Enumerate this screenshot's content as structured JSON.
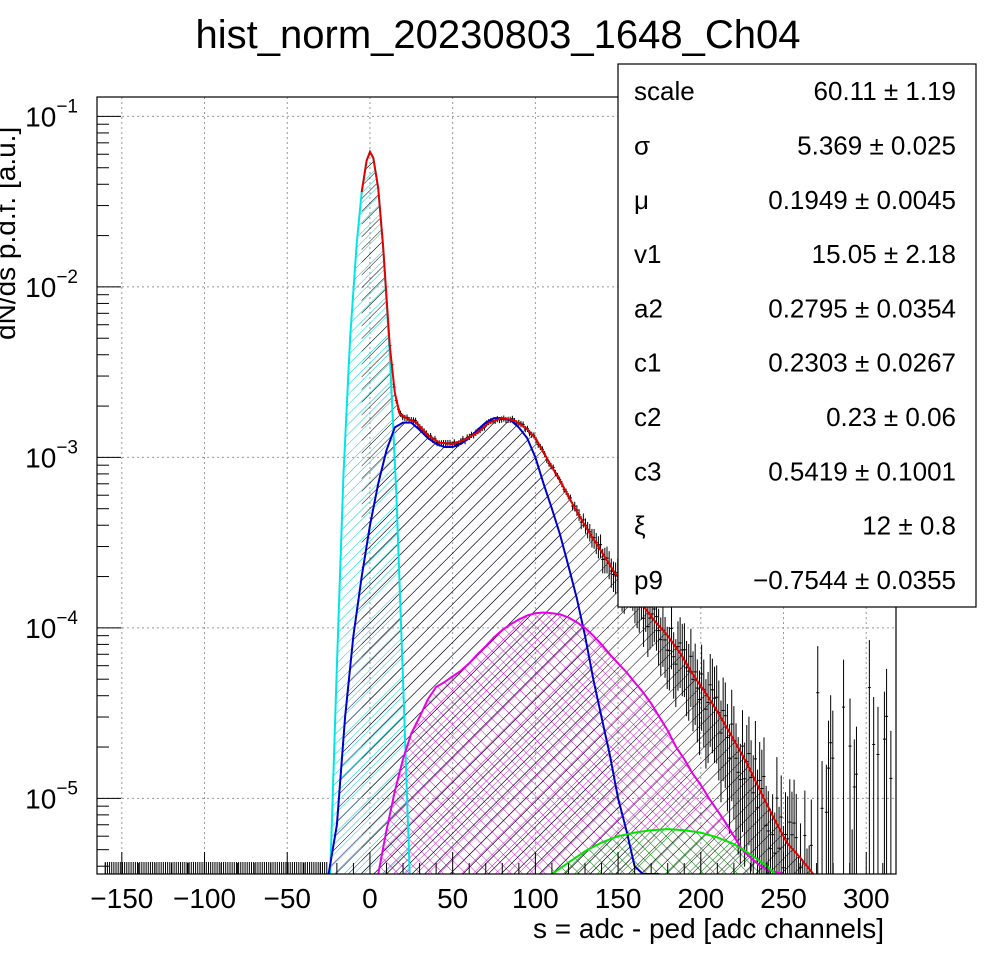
{
  "chart_data": {
    "type": "line",
    "title": "hist_norm_20230803_1648_Ch04",
    "xlabel": "s = adc - ped [adc channels]",
    "ylabel": "dN/ds p.d.f. [a.u.]",
    "xlim": [
      -165,
      318
    ],
    "ylim": [
      3.6e-06,
      0.13
    ],
    "yscale": "log",
    "grid": true,
    "x_ticks": [
      {
        "v": -150,
        "label": "−150"
      },
      {
        "v": -100,
        "label": "−100"
      },
      {
        "v": -50,
        "label": "−50"
      },
      {
        "v": 0,
        "label": "0"
      },
      {
        "v": 50,
        "label": "50"
      },
      {
        "v": 100,
        "label": "100"
      },
      {
        "v": 150,
        "label": "150"
      },
      {
        "v": 200,
        "label": "200"
      },
      {
        "v": 250,
        "label": "250"
      },
      {
        "v": 300,
        "label": "300"
      }
    ],
    "y_ticks": [
      {
        "v": 0.1,
        "base": "10",
        "exp": "−1"
      },
      {
        "v": 0.01,
        "base": "10",
        "exp": "−2"
      },
      {
        "v": 0.001,
        "base": "10",
        "exp": "−3"
      },
      {
        "v": 0.0001,
        "base": "10",
        "exp": "−4"
      },
      {
        "v": 1e-05,
        "base": "10",
        "exp": "−5"
      }
    ],
    "series": [
      {
        "color": "#00e5e5",
        "style": "hatch",
        "x": [
          -24,
          -20,
          -16,
          -12,
          -8,
          -5,
          -2,
          0,
          2,
          5,
          8,
          12,
          16,
          20,
          24
        ],
        "y": [
          3.6e-06,
          6e-05,
          0.0008,
          0.005,
          0.018,
          0.036,
          0.055,
          0.062,
          0.057,
          0.038,
          0.017,
          0.004,
          0.0006,
          5e-05,
          3.6e-06
        ]
      },
      {
        "color": "#0000cc",
        "style": "hatch",
        "x": [
          -25,
          -20,
          -15,
          -10,
          -5,
          0,
          5,
          10,
          15,
          20,
          25,
          30,
          35,
          40,
          45,
          50,
          55,
          60,
          65,
          70,
          75,
          80,
          85,
          90,
          95,
          100,
          105,
          110,
          115,
          120,
          125,
          130,
          135,
          140,
          145,
          150,
          155,
          160,
          165,
          170,
          175
        ],
        "y": [
          3.6e-06,
          7e-06,
          3e-05,
          9e-05,
          0.0002,
          0.0004,
          0.0007,
          0.0011,
          0.0015,
          0.0016,
          0.0016,
          0.00145,
          0.0013,
          0.0012,
          0.00115,
          0.00115,
          0.0012,
          0.0013,
          0.00145,
          0.0016,
          0.0017,
          0.0017,
          0.00165,
          0.0015,
          0.0013,
          0.001,
          0.0007,
          0.0005,
          0.00035,
          0.00023,
          0.00015,
          9e-05,
          5e-05,
          3e-05,
          1.8e-05,
          1e-05,
          6.5e-06,
          4e-06,
          3.6e-06,
          3.6e-06,
          3.6e-06
        ]
      },
      {
        "color": "#e500e5",
        "style": "crosshatch",
        "x": [
          5,
          10,
          15,
          20,
          25,
          30,
          35,
          40,
          45,
          50,
          55,
          60,
          65,
          70,
          75,
          80,
          85,
          90,
          95,
          100,
          105,
          110,
          115,
          120,
          125,
          130,
          135,
          140,
          145,
          150,
          155,
          160,
          165,
          170,
          175,
          180,
          185,
          190,
          195,
          200,
          205,
          210,
          215,
          220,
          225,
          230,
          235,
          240,
          245,
          250
        ],
        "y": [
          3.6e-06,
          6.5e-06,
          1.1e-05,
          1.7e-05,
          2.4e-05,
          3e-05,
          3.8e-05,
          4.5e-05,
          4.8e-05,
          5.2e-05,
          5.6e-05,
          6.2e-05,
          7e-05,
          7.8e-05,
          8.8e-05,
          9.7e-05,
          0.000105,
          0.000112,
          0.000118,
          0.000122,
          0.000123,
          0.000122,
          0.00012,
          0.000115,
          0.000108,
          0.0001,
          9e-05,
          8e-05,
          7e-05,
          6.2e-05,
          5.5e-05,
          4.8e-05,
          4.2e-05,
          3.6e-05,
          3e-05,
          2.5e-05,
          2e-05,
          1.7e-05,
          1.4e-05,
          1.2e-05,
          1e-05,
          8.5e-06,
          7.2e-06,
          6e-06,
          5e-06,
          4.5e-06,
          4.1e-06,
          3.8e-06,
          3.7e-06,
          3.6e-06
        ]
      },
      {
        "color": "#00e500",
        "style": "crosshatch",
        "x": [
          110,
          120,
          130,
          140,
          150,
          160,
          170,
          180,
          190,
          200,
          210,
          220,
          230,
          240,
          245
        ],
        "y": [
          3.6e-06,
          4.2e-06,
          4.9e-06,
          5.5e-06,
          6e-06,
          6.3e-06,
          6.5e-06,
          6.6e-06,
          6.5e-06,
          6.3e-06,
          5.9e-06,
          5.4e-06,
          4.7e-06,
          4e-06,
          3.6e-06
        ]
      },
      {
        "color": "#e50000",
        "style": "line",
        "x": [
          -5,
          -2,
          0,
          2,
          5,
          8,
          12,
          15,
          18,
          22,
          28,
          35,
          42,
          50,
          58,
          65,
          72,
          80,
          87,
          94,
          100,
          108,
          116,
          124,
          132,
          140,
          148,
          156,
          164,
          172,
          180,
          188,
          196,
          204,
          212,
          220,
          228,
          236,
          244,
          252,
          260,
          268
        ],
        "y": [
          0.036,
          0.055,
          0.062,
          0.057,
          0.038,
          0.017,
          0.0045,
          0.0024,
          0.0018,
          0.0017,
          0.0016,
          0.00135,
          0.00122,
          0.0012,
          0.00128,
          0.0014,
          0.0016,
          0.0017,
          0.00165,
          0.0015,
          0.0013,
          0.00095,
          0.0007,
          0.0005,
          0.00037,
          0.00028,
          0.00021,
          0.00017,
          0.00014,
          0.00011,
          9e-05,
          7e-05,
          5.2e-05,
          4e-05,
          3e-05,
          2.2e-05,
          1.6e-05,
          1.1e-05,
          7.7e-06,
          5.5e-06,
          4.5e-06,
          3.6e-06
        ]
      }
    ]
  },
  "stats_box": {
    "rows": [
      {
        "name": "scale",
        "value": "60.11 ± 1.19"
      },
      {
        "name": "σ",
        "value": "5.369 ± 0.025"
      },
      {
        "name": "μ",
        "value": "0.1949 ± 0.0045"
      },
      {
        "name": "v1",
        "value": "15.05 ± 2.18"
      },
      {
        "name": "a2",
        "value": "0.2795 ± 0.0354"
      },
      {
        "name": "c1",
        "value": "0.2303 ± 0.0267"
      },
      {
        "name": "c2",
        "value": "0.23 ± 0.06"
      },
      {
        "name": "c3",
        "value": "0.5419 ± 0.1001"
      },
      {
        "name": "ξ",
        "value": "12 ± 0.8"
      },
      {
        "name": "p9",
        "value": "−0.7544 ± 0.0355"
      }
    ]
  }
}
